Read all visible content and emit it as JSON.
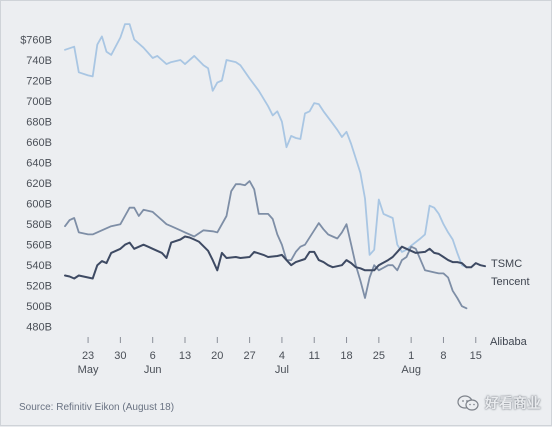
{
  "chart_data": {
    "type": "line",
    "title": "",
    "xlabel": "",
    "ylabel": "",
    "yticks": [
      "$760B",
      "740B",
      "720B",
      "700B",
      "680B",
      "660B",
      "640B",
      "620B",
      "600B",
      "580B",
      "560B",
      "540B",
      "520B",
      "500B",
      "480B"
    ],
    "ylim": [
      470,
      780
    ],
    "xlim": [
      0,
      88
    ],
    "xticks": [
      {
        "x": 5,
        "label": "23"
      },
      {
        "x": 12,
        "label": "30"
      },
      {
        "x": 19,
        "label": "6"
      },
      {
        "x": 26,
        "label": "13"
      },
      {
        "x": 33,
        "label": "20"
      },
      {
        "x": 40,
        "label": "27"
      },
      {
        "x": 47,
        "label": "4"
      },
      {
        "x": 54,
        "label": "11"
      },
      {
        "x": 61,
        "label": "18"
      },
      {
        "x": 68,
        "label": "25"
      },
      {
        "x": 75,
        "label": "1"
      },
      {
        "x": 82,
        "label": "8"
      },
      {
        "x": 89,
        "label": "15"
      }
    ],
    "months": [
      {
        "x": 5,
        "label": "May"
      },
      {
        "x": 19,
        "label": "Jun"
      },
      {
        "x": 47,
        "label": "Jul"
      },
      {
        "x": 75,
        "label": "Aug"
      }
    ],
    "series": [
      {
        "name": "Alibaba",
        "color": "#a9c6e3",
        "points": [
          [
            0,
            750
          ],
          [
            2,
            753
          ],
          [
            3,
            728
          ],
          [
            5,
            725
          ],
          [
            6,
            724
          ],
          [
            7,
            755
          ],
          [
            8,
            763
          ],
          [
            9,
            748
          ],
          [
            10,
            745
          ],
          [
            12,
            762
          ],
          [
            13,
            775
          ],
          [
            14,
            775
          ],
          [
            15,
            760
          ],
          [
            17,
            752
          ],
          [
            19,
            742
          ],
          [
            20,
            744
          ],
          [
            21,
            740
          ],
          [
            22,
            736
          ],
          [
            23,
            738
          ],
          [
            25,
            740
          ],
          [
            26,
            736
          ],
          [
            28,
            744
          ],
          [
            30,
            735
          ],
          [
            31,
            732
          ],
          [
            32,
            710
          ],
          [
            33,
            718
          ],
          [
            34,
            720
          ],
          [
            35,
            740
          ],
          [
            37,
            738
          ],
          [
            38,
            735
          ],
          [
            40,
            722
          ],
          [
            42,
            710
          ],
          [
            44,
            695
          ],
          [
            45,
            686
          ],
          [
            46,
            690
          ],
          [
            47,
            680
          ],
          [
            48,
            655
          ],
          [
            49,
            666
          ],
          [
            50,
            664
          ],
          [
            51,
            663
          ],
          [
            52,
            688
          ],
          [
            53,
            690
          ],
          [
            54,
            698
          ],
          [
            55,
            697
          ],
          [
            56,
            690
          ],
          [
            58,
            678
          ],
          [
            59,
            672
          ],
          [
            60,
            665
          ],
          [
            61,
            670
          ],
          [
            62,
            658
          ],
          [
            64,
            630
          ],
          [
            65,
            605
          ],
          [
            66,
            550
          ],
          [
            67,
            555
          ],
          [
            68,
            604
          ],
          [
            69,
            590
          ],
          [
            70,
            588
          ],
          [
            71,
            586
          ],
          [
            72,
            560
          ],
          [
            73,
            553
          ],
          [
            74,
            555
          ],
          [
            75,
            559
          ],
          [
            77,
            566
          ],
          [
            78,
            570
          ],
          [
            79,
            598
          ],
          [
            80,
            596
          ],
          [
            81,
            590
          ],
          [
            82,
            580
          ],
          [
            83,
            572
          ],
          [
            84,
            565
          ],
          [
            85,
            552
          ],
          [
            86,
            540
          ],
          [
            87,
            538
          ]
        ]
      },
      {
        "name": "TSMC",
        "color": "#7e8ea6",
        "points": [
          [
            0,
            578
          ],
          [
            1,
            584
          ],
          [
            2,
            586
          ],
          [
            3,
            572
          ],
          [
            5,
            570
          ],
          [
            6,
            570
          ],
          [
            8,
            574
          ],
          [
            10,
            578
          ],
          [
            12,
            580
          ],
          [
            14,
            596
          ],
          [
            15,
            596
          ],
          [
            16,
            588
          ],
          [
            17,
            594
          ],
          [
            19,
            592
          ],
          [
            20,
            588
          ],
          [
            21,
            584
          ],
          [
            22,
            580
          ],
          [
            23,
            578
          ],
          [
            25,
            574
          ],
          [
            26,
            572
          ],
          [
            28,
            568
          ],
          [
            30,
            574
          ],
          [
            32,
            573
          ],
          [
            33,
            572
          ],
          [
            35,
            588
          ],
          [
            36,
            612
          ],
          [
            37,
            619
          ],
          [
            38,
            619
          ],
          [
            39,
            618
          ],
          [
            40,
            622
          ],
          [
            41,
            614
          ],
          [
            42,
            590
          ],
          [
            44,
            590
          ],
          [
            45,
            585
          ],
          [
            46,
            570
          ],
          [
            47,
            560
          ],
          [
            48,
            545
          ],
          [
            49,
            545
          ],
          [
            50,
            553
          ],
          [
            51,
            558
          ],
          [
            52,
            560
          ],
          [
            54,
            574
          ],
          [
            55,
            581
          ],
          [
            56,
            575
          ],
          [
            57,
            570
          ],
          [
            58,
            568
          ],
          [
            59,
            566
          ],
          [
            60,
            572
          ],
          [
            61,
            580
          ],
          [
            62,
            560
          ],
          [
            63,
            540
          ],
          [
            64,
            525
          ],
          [
            65,
            508
          ],
          [
            66,
            528
          ],
          [
            67,
            540
          ],
          [
            68,
            535
          ],
          [
            70,
            540
          ],
          [
            71,
            540
          ],
          [
            72,
            535
          ],
          [
            73,
            545
          ],
          [
            74,
            548
          ],
          [
            75,
            558
          ],
          [
            76,
            556
          ],
          [
            78,
            535
          ],
          [
            80,
            533
          ],
          [
            81,
            532
          ],
          [
            82,
            532
          ],
          [
            83,
            528
          ],
          [
            84,
            515
          ],
          [
            85,
            508
          ],
          [
            86,
            500
          ],
          [
            87,
            498
          ]
        ]
      },
      {
        "name": "Tencent",
        "color": "#3e4a63",
        "points": [
          [
            0,
            530
          ],
          [
            1,
            529
          ],
          [
            2,
            527
          ],
          [
            3,
            530
          ],
          [
            5,
            528
          ],
          [
            6,
            527
          ],
          [
            7,
            540
          ],
          [
            8,
            544
          ],
          [
            9,
            542
          ],
          [
            10,
            552
          ],
          [
            12,
            556
          ],
          [
            13,
            560
          ],
          [
            14,
            562
          ],
          [
            15,
            556
          ],
          [
            17,
            560
          ],
          [
            18,
            558
          ],
          [
            19,
            556
          ],
          [
            21,
            552
          ],
          [
            22,
            547
          ],
          [
            23,
            562
          ],
          [
            25,
            565
          ],
          [
            26,
            568
          ],
          [
            27,
            567
          ],
          [
            28,
            565
          ],
          [
            29,
            563
          ],
          [
            31,
            554
          ],
          [
            32,
            545
          ],
          [
            33,
            535
          ],
          [
            34,
            552
          ],
          [
            35,
            547
          ],
          [
            37,
            548
          ],
          [
            38,
            547
          ],
          [
            40,
            548
          ],
          [
            41,
            553
          ],
          [
            43,
            550
          ],
          [
            44,
            548
          ],
          [
            46,
            549
          ],
          [
            47,
            550
          ],
          [
            48,
            545
          ],
          [
            49,
            540
          ],
          [
            50,
            543
          ],
          [
            52,
            546
          ],
          [
            53,
            553
          ],
          [
            54,
            553
          ],
          [
            55,
            545
          ],
          [
            56,
            543
          ],
          [
            57,
            540
          ],
          [
            58,
            538
          ],
          [
            60,
            540
          ],
          [
            61,
            545
          ],
          [
            62,
            542
          ],
          [
            63,
            538
          ],
          [
            64,
            537
          ],
          [
            65,
            535
          ],
          [
            66,
            535
          ],
          [
            67,
            535
          ],
          [
            68,
            540
          ],
          [
            70,
            545
          ],
          [
            71,
            548
          ],
          [
            72,
            553
          ],
          [
            73,
            558
          ],
          [
            74,
            556
          ],
          [
            76,
            552
          ],
          [
            78,
            553
          ],
          [
            79,
            556
          ],
          [
            80,
            552
          ],
          [
            81,
            551
          ],
          [
            82,
            548
          ],
          [
            83,
            545
          ],
          [
            84,
            543
          ],
          [
            85,
            543
          ],
          [
            86,
            542
          ],
          [
            87,
            538
          ],
          [
            88,
            538
          ],
          [
            89,
            542
          ],
          [
            90,
            540
          ],
          [
            91,
            539
          ]
        ]
      }
    ],
    "labels": [
      {
        "series": "TSMC",
        "text": "TSMC"
      },
      {
        "series": "Tencent",
        "text": "Tencent"
      },
      {
        "series": "Alibaba",
        "text": "Alibaba"
      }
    ],
    "grid": false,
    "legend": "none"
  },
  "footer": {
    "source": "Source: Refinitiv Eikon (August 18)",
    "watermark": "好看商业"
  }
}
